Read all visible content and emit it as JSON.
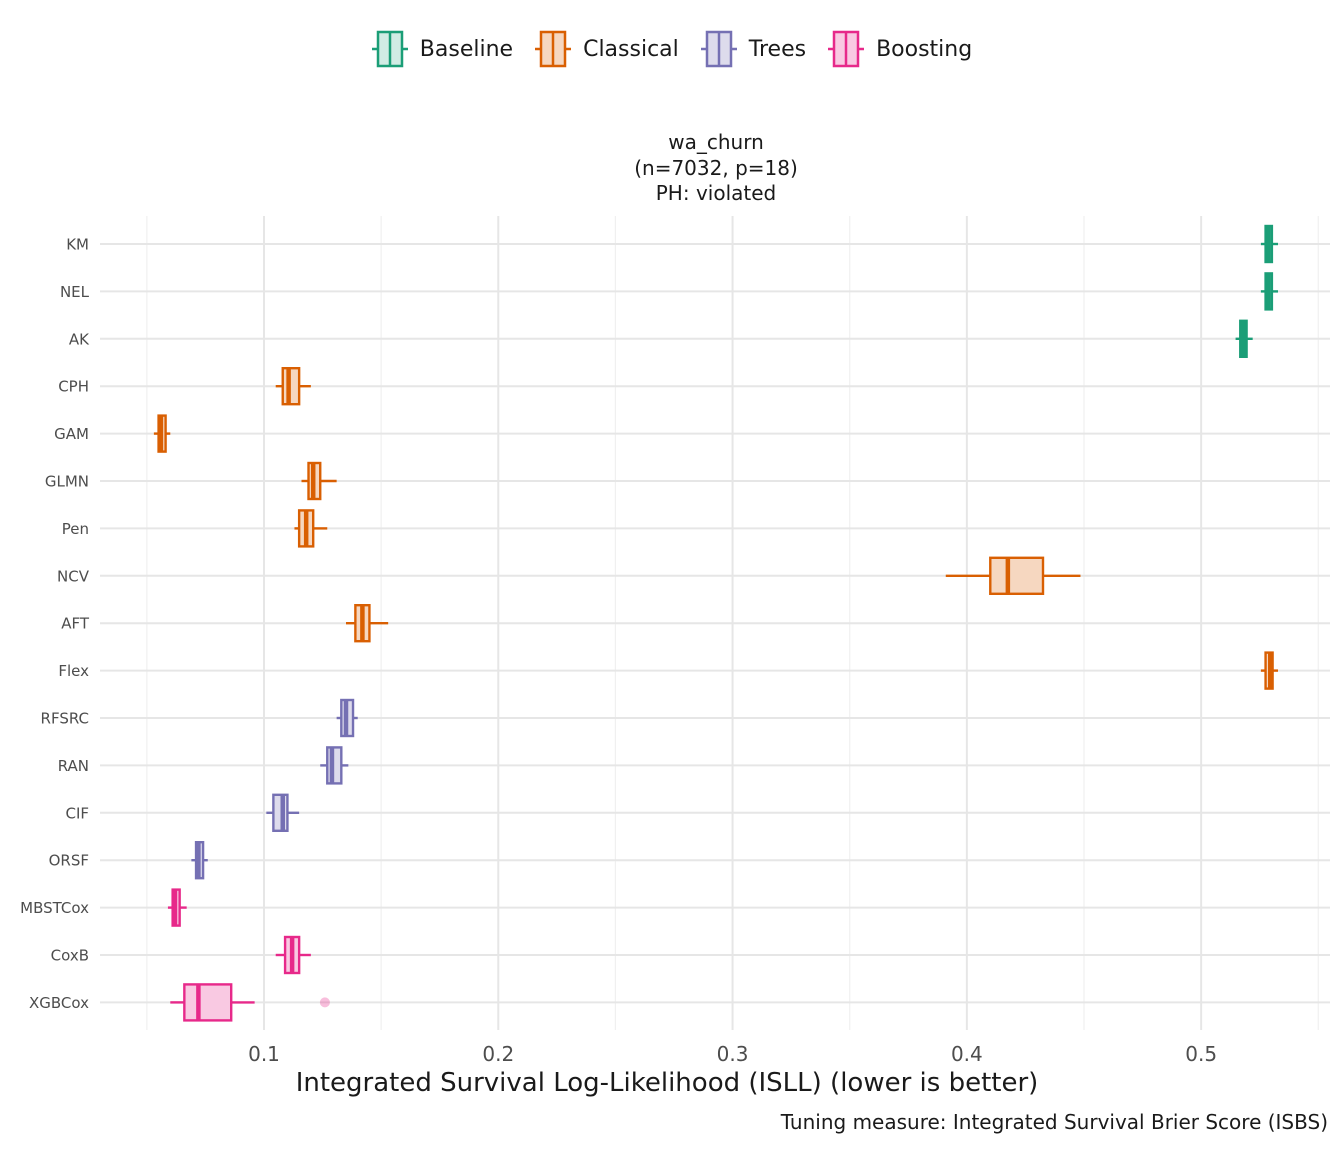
{
  "legend": [
    {
      "name": "Baseline",
      "stroke": "#1b9e77",
      "fill": "#d1ece4"
    },
    {
      "name": "Classical",
      "stroke": "#d95f02",
      "fill": "#f6d7c0"
    },
    {
      "name": "Trees",
      "stroke": "#7570b3",
      "fill": "#dddbec"
    },
    {
      "name": "Boosting",
      "stroke": "#e7298a",
      "fill": "#f9c9e2"
    }
  ],
  "panel_title": {
    "line1": "wa_churn",
    "line2": "(n=7032, p=18)",
    "line3": "PH: violated"
  },
  "caption": "Tuning measure: Integrated Survival Brier Score (ISBS)",
  "chart_data": {
    "type": "boxplot",
    "orientation": "horizontal",
    "title": "wa_churn (n=7032, p=18) PH: violated",
    "xlabel": "Integrated Survival Log-Likelihood (ISLL) (lower is better)",
    "ylabel": "",
    "xlim": [
      0.03,
      0.555
    ],
    "xticks": [
      0.1,
      0.2,
      0.3,
      0.4,
      0.5
    ],
    "xtick_labels": [
      "0.1",
      "0.2",
      "0.3",
      "0.4",
      "0.5"
    ],
    "grid": true,
    "legend_position": "top",
    "series": [
      {
        "name": "Baseline",
        "categories": [
          "KM",
          "NEL",
          "AK"
        ]
      },
      {
        "name": "Classical",
        "categories": [
          "CPH",
          "GAM",
          "GLMN",
          "Pen",
          "NCV",
          "AFT",
          "Flex"
        ]
      },
      {
        "name": "Trees",
        "categories": [
          "RFSRC",
          "RAN",
          "CIF",
          "ORSF"
        ]
      },
      {
        "name": "Boosting",
        "categories": [
          "MBSTCox",
          "CoxB",
          "XGBCox"
        ]
      }
    ],
    "boxes": [
      {
        "label": "KM",
        "group": "Baseline",
        "min": 0.5255,
        "q1": 0.5275,
        "median": 0.5288,
        "q3": 0.5302,
        "max": 0.5328
      },
      {
        "label": "NEL",
        "group": "Baseline",
        "min": 0.5255,
        "q1": 0.5275,
        "median": 0.5288,
        "q3": 0.5302,
        "max": 0.5328
      },
      {
        "label": "AK",
        "group": "Baseline",
        "min": 0.5147,
        "q1": 0.5167,
        "median": 0.518,
        "q3": 0.5194,
        "max": 0.522
      },
      {
        "label": "CPH",
        "group": "Classical",
        "min": 0.105,
        "q1": 0.108,
        "median": 0.1105,
        "q3": 0.115,
        "max": 0.12
      },
      {
        "label": "GAM",
        "group": "Classical",
        "min": 0.053,
        "q1": 0.055,
        "median": 0.056,
        "q3": 0.058,
        "max": 0.06
      },
      {
        "label": "GLMN",
        "group": "Classical",
        "min": 0.116,
        "q1": 0.119,
        "median": 0.121,
        "q3": 0.124,
        "max": 0.131
      },
      {
        "label": "Pen",
        "group": "Classical",
        "min": 0.113,
        "q1": 0.115,
        "median": 0.118,
        "q3": 0.121,
        "max": 0.127
      },
      {
        "label": "NCV",
        "group": "Classical",
        "min": 0.391,
        "q1": 0.41,
        "median": 0.4175,
        "q3": 0.4325,
        "max": 0.4485
      },
      {
        "label": "AFT",
        "group": "Classical",
        "min": 0.135,
        "q1": 0.139,
        "median": 0.142,
        "q3": 0.145,
        "max": 0.153
      },
      {
        "label": "Flex",
        "group": "Classical",
        "min": 0.5255,
        "q1": 0.5275,
        "median": 0.5295,
        "q3": 0.5305,
        "max": 0.5328
      },
      {
        "label": "RFSRC",
        "group": "Trees",
        "min": 0.131,
        "q1": 0.133,
        "median": 0.135,
        "q3": 0.138,
        "max": 0.14
      },
      {
        "label": "RAN",
        "group": "Trees",
        "min": 0.124,
        "q1": 0.127,
        "median": 0.129,
        "q3": 0.133,
        "max": 0.136
      },
      {
        "label": "CIF",
        "group": "Trees",
        "min": 0.101,
        "q1": 0.104,
        "median": 0.108,
        "q3": 0.11,
        "max": 0.115
      },
      {
        "label": "ORSF",
        "group": "Trees",
        "min": 0.069,
        "q1": 0.071,
        "median": 0.072,
        "q3": 0.074,
        "max": 0.076
      },
      {
        "label": "MBSTCox",
        "group": "Boosting",
        "min": 0.059,
        "q1": 0.061,
        "median": 0.062,
        "q3": 0.064,
        "max": 0.067
      },
      {
        "label": "CoxB",
        "group": "Boosting",
        "min": 0.105,
        "q1": 0.109,
        "median": 0.112,
        "q3": 0.115,
        "max": 0.12
      },
      {
        "label": "XGBCox",
        "group": "Boosting",
        "min": 0.06,
        "q1": 0.066,
        "median": 0.072,
        "q3": 0.086,
        "max": 0.096,
        "outliers": [
          0.126
        ]
      }
    ]
  }
}
